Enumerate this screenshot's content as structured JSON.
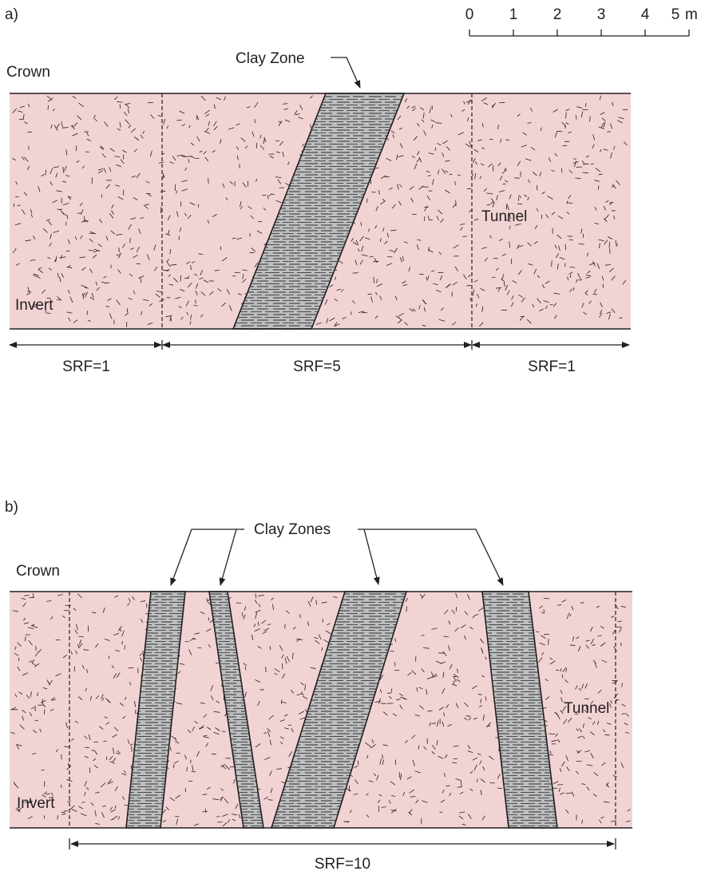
{
  "scale": {
    "ticks": [
      "0",
      "1",
      "2",
      "3",
      "4",
      "5"
    ],
    "unit": "m"
  },
  "colors": {
    "rock": "#f2d3d4",
    "clay": "#bcbec0",
    "ink": "#231f20"
  },
  "panel_a": {
    "label": "a)",
    "crown": "Crown",
    "invert": "Invert",
    "tunnel": "Tunnel",
    "clay_zone_label": "Clay Zone",
    "srf": [
      "SRF=1",
      "SRF=5",
      "SRF=1"
    ]
  },
  "panel_b": {
    "label": "b)",
    "crown": "Crown",
    "invert": "Invert",
    "tunnel": "Tunnel",
    "clay_zones_label": "Clay Zones",
    "srf": [
      "SRF=10"
    ]
  }
}
